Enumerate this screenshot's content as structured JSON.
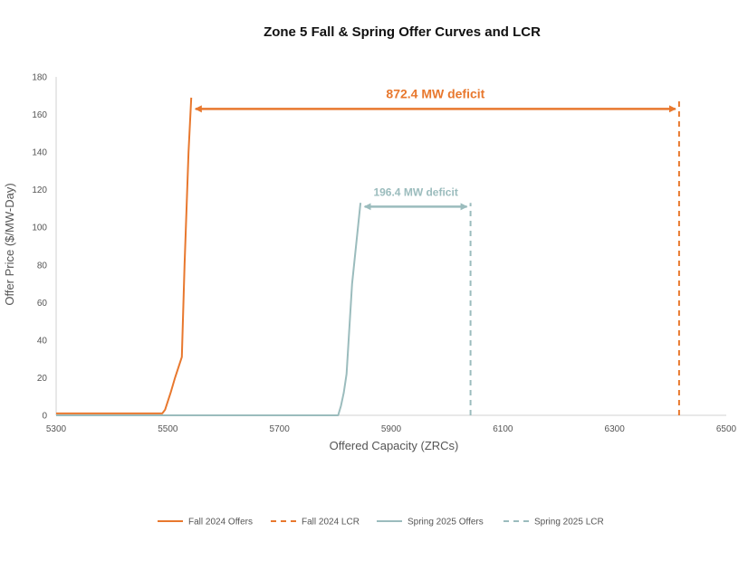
{
  "chart_data": {
    "type": "line",
    "title": "Zone 5 Fall & Spring Offer Curves and LCR",
    "xlabel": "Offered Capacity (ZRCs)",
    "ylabel": "Offer Price ($/MW-Day)",
    "xlim": [
      5300,
      6500
    ],
    "ylim": [
      0,
      180
    ],
    "xticks": [
      5300,
      5500,
      5700,
      5900,
      6100,
      6300,
      6500
    ],
    "yticks": [
      0,
      20,
      40,
      60,
      80,
      100,
      120,
      140,
      160,
      180
    ],
    "grid": false,
    "legend_position": "bottom",
    "colors": {
      "fall": "#E8782E",
      "spring": "#9BBCBD",
      "axis": "#D0D0D0"
    },
    "series": [
      {
        "name": "Fall 2024 Offers",
        "style": "solid",
        "color": "#E8782E",
        "x": [
          5300,
          5490,
          5495,
          5505,
          5513,
          5525,
          5530,
          5537,
          5542
        ],
        "y": [
          1,
          1,
          3,
          12,
          20,
          31,
          80,
          140,
          169
        ]
      },
      {
        "name": "Fall 2024 LCR",
        "style": "dashed",
        "color": "#E8782E",
        "x": [
          6415.5,
          6415.5
        ],
        "y": [
          0,
          169
        ]
      },
      {
        "name": "Spring 2025 Offers",
        "style": "solid",
        "color": "#9BBCBD",
        "x": [
          5300,
          5805,
          5810,
          5815,
          5820,
          5830,
          5845
        ],
        "y": [
          0,
          0,
          5,
          12,
          22,
          70,
          113
        ]
      },
      {
        "name": "Spring 2025 LCR",
        "style": "dashed",
        "color": "#9BBCBD",
        "x": [
          6042,
          6042
        ],
        "y": [
          0,
          113
        ]
      }
    ],
    "annotations": [
      {
        "text": "872.4 MW deficit",
        "x1": 5543,
        "x2": 6415.5,
        "y": 163,
        "color": "#E8782E"
      },
      {
        "text": "196.4 MW deficit",
        "x1": 5846,
        "x2": 6042,
        "y": 111,
        "color": "#9BBCBD"
      }
    ]
  }
}
